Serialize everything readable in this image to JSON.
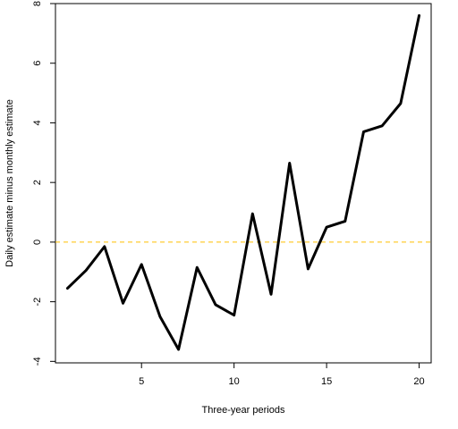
{
  "chart_data": {
    "type": "line",
    "title": "",
    "xlabel": "Three-year periods",
    "ylabel": "Daily estimate minus monthly estimate",
    "xlim": [
      0.35,
      20.65
    ],
    "ylim": [
      -4.05,
      8.0
    ],
    "x_ticks": [
      5,
      10,
      15,
      20
    ],
    "y_ticks": [
      -4,
      -2,
      0,
      2,
      4,
      6,
      8
    ],
    "x_tick_labels": [
      "5",
      "10",
      "15",
      "20"
    ],
    "y_tick_labels": [
      "-4",
      "-2",
      "0",
      "2",
      "4",
      "6",
      "8"
    ],
    "grid": false,
    "reference_line": {
      "y": 0,
      "color": "#ffc000",
      "style": "dashed"
    },
    "series": [
      {
        "color": "#000000",
        "x": [
          1,
          2,
          3,
          4,
          5,
          6,
          7,
          8,
          9,
          10,
          11,
          12,
          13,
          14,
          15,
          16,
          17,
          18,
          19,
          20
        ],
        "y": [
          -1.55,
          -0.95,
          -0.15,
          -2.05,
          -0.75,
          -2.5,
          -3.6,
          -0.85,
          -2.1,
          -2.45,
          0.95,
          -1.75,
          2.65,
          -0.9,
          0.5,
          0.7,
          3.7,
          3.9,
          4.65,
          7.6
        ]
      }
    ]
  }
}
